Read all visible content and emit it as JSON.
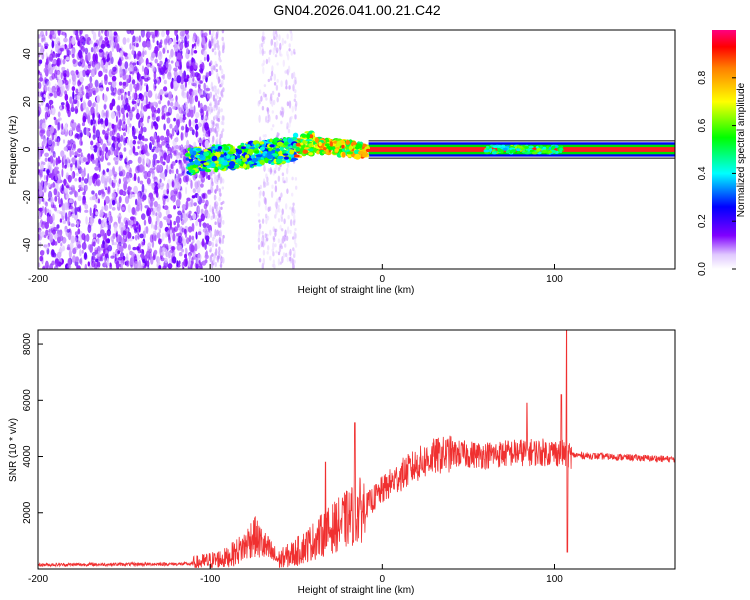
{
  "title": "GN04.2026.041.00.21.C42",
  "colorbar": {
    "label": "Normalized spectral amplitude",
    "ticks": [
      "0.0",
      "0.2",
      "0.4",
      "0.6",
      "0.8"
    ]
  },
  "chart_data": [
    {
      "type": "heatmap",
      "xlabel": "Height of straight line (km)",
      "ylabel": "Frequency (Hz)",
      "xlim": [
        -200,
        170
      ],
      "ylim": [
        -50,
        50
      ],
      "xticks": [
        "-200",
        "-100",
        "0",
        "100"
      ],
      "yticks": [
        "-40",
        "-20",
        "0",
        "20",
        "40"
      ],
      "zlim": [
        0,
        1
      ],
      "signal_band": {
        "x_range": [
          -113,
          170
        ],
        "center_frequency_hz": 0
      }
    },
    {
      "type": "line",
      "xlabel": "Height of straight line (km)",
      "ylabel": "SNR (10 * v/v)",
      "xlim": [
        -200,
        170
      ],
      "ylim": [
        0,
        8500
      ],
      "xticks": [
        "-200",
        "-100",
        "0",
        "100"
      ],
      "yticks": [
        "2000",
        "4000",
        "6000",
        "8000"
      ],
      "color": "#f03030",
      "trend": {
        "x": [
          -200,
          -110,
          -90,
          -80,
          -75,
          -70,
          -60,
          -50,
          -40,
          -30,
          -20,
          -10,
          0,
          10,
          20,
          30,
          40,
          60,
          80,
          100,
          110,
          130,
          150,
          170
        ],
        "y": [
          150,
          180,
          400,
          800,
          1200,
          900,
          300,
          600,
          1000,
          1400,
          1800,
          2200,
          2800,
          3300,
          3700,
          4000,
          4100,
          4050,
          4150,
          4150,
          4050,
          4000,
          3950,
          3900
        ]
      },
      "spikes": [
        {
          "x": -16,
          "y": 5200
        },
        {
          "x": -33,
          "y": 3800
        },
        {
          "x": 84,
          "y": 5900
        },
        {
          "x": 104,
          "y": 6200
        },
        {
          "x": 107,
          "y": 8500
        },
        {
          "x": 107.5,
          "y": 600
        }
      ]
    }
  ]
}
